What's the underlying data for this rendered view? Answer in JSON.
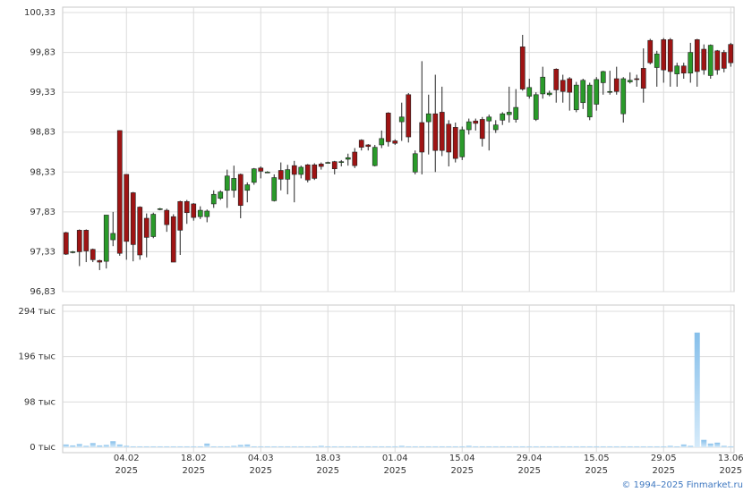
{
  "chart_data": {
    "type": "candlestick",
    "categories": [
      null,
      null,
      null,
      null,
      null,
      null,
      null,
      null,
      null,
      "04.02\n2025",
      null,
      null,
      null,
      null,
      null,
      null,
      null,
      null,
      null,
      "18.02\n2025",
      null,
      null,
      null,
      null,
      null,
      null,
      null,
      null,
      null,
      "04.03\n2025",
      null,
      null,
      null,
      null,
      null,
      null,
      null,
      null,
      null,
      "18.03\n2025",
      null,
      null,
      null,
      null,
      null,
      null,
      null,
      null,
      null,
      "01.04\n2025",
      null,
      null,
      null,
      null,
      null,
      null,
      null,
      null,
      null,
      "15.04\n2025",
      null,
      null,
      null,
      null,
      null,
      null,
      null,
      null,
      null,
      "29.04\n2025",
      null,
      null,
      null,
      null,
      null,
      null,
      null,
      null,
      null,
      "15.05\n2025",
      null,
      null,
      null,
      null,
      null,
      null,
      null,
      null,
      null,
      "29.05\n2025",
      null,
      null,
      null,
      null,
      null,
      null,
      null,
      null,
      null,
      "13.06\n2025"
    ],
    "open": [
      97.57,
      97.33,
      97.6,
      97.6,
      97.36,
      97.22,
      97.21,
      97.48,
      98.85,
      98.3,
      98.07,
      97.89,
      97.75,
      97.52,
      97.86,
      97.85,
      97.77,
      97.96,
      97.96,
      97.93,
      97.77,
      97.77,
      97.93,
      98.0,
      98.1,
      98.1,
      98.3,
      98.1,
      98.2,
      98.38,
      98.33,
      97.97,
      98.35,
      98.24,
      98.41,
      98.3,
      98.42,
      98.42,
      98.43,
      98.45,
      98.46,
      98.46,
      98.49,
      98.58,
      98.73,
      98.67,
      98.41,
      98.67,
      99.07,
      98.72,
      98.96,
      99.3,
      98.33,
      98.95,
      98.96,
      99.06,
      99.08,
      98.93,
      98.89,
      98.52,
      98.86,
      98.97,
      98.99,
      98.97,
      98.86,
      98.98,
      99.05,
      98.99,
      99.9,
      99.28,
      98.99,
      99.31,
      99.3,
      99.62,
      99.48,
      99.5,
      99.11,
      99.2,
      99.02,
      99.18,
      99.45,
      99.34,
      99.5,
      99.06,
      99.46,
      99.5,
      99.63,
      99.98,
      99.64,
      99.99,
      99.99,
      99.56,
      99.66,
      99.57,
      99.99,
      99.87,
      99.54,
      99.85,
      99.83,
      99.93
    ],
    "high": [
      97.58,
      97.34,
      97.61,
      97.61,
      97.37,
      97.23,
      97.79,
      97.83,
      98.85,
      98.3,
      98.08,
      97.9,
      97.81,
      97.82,
      97.88,
      97.87,
      97.8,
      97.97,
      97.98,
      97.94,
      97.9,
      97.86,
      98.1,
      98.1,
      98.36,
      98.41,
      98.31,
      98.2,
      98.38,
      98.4,
      98.34,
      98.3,
      98.45,
      98.42,
      98.47,
      98.41,
      98.43,
      98.44,
      98.45,
      98.46,
      98.47,
      98.48,
      98.56,
      98.63,
      98.74,
      98.68,
      98.67,
      98.85,
      99.08,
      98.74,
      99.2,
      99.32,
      98.6,
      99.72,
      99.3,
      99.55,
      99.4,
      98.98,
      98.95,
      98.9,
      99.0,
      99.0,
      99.02,
      99.05,
      98.98,
      99.08,
      99.4,
      99.37,
      100.05,
      99.5,
      99.33,
      99.65,
      99.35,
      99.63,
      99.55,
      99.52,
      99.46,
      99.5,
      99.45,
      99.52,
      99.6,
      99.6,
      99.65,
      99.52,
      99.58,
      99.55,
      99.88,
      100.0,
      99.85,
      100.01,
      100.01,
      99.7,
      99.7,
      99.95,
      100.0,
      99.93,
      99.93,
      99.86,
      99.86,
      99.95
    ],
    "low": [
      97.29,
      97.31,
      97.15,
      97.2,
      97.2,
      97.1,
      97.12,
      97.4,
      97.28,
      97.23,
      97.21,
      97.23,
      97.26,
      97.5,
      97.85,
      97.58,
      97.2,
      97.29,
      97.68,
      97.72,
      97.74,
      97.7,
      97.88,
      97.98,
      97.88,
      98.01,
      97.75,
      97.95,
      98.17,
      98.25,
      98.32,
      97.96,
      98.1,
      98.05,
      97.95,
      98.25,
      98.2,
      98.23,
      98.36,
      98.44,
      98.3,
      98.4,
      98.41,
      98.38,
      98.6,
      98.6,
      98.4,
      98.63,
      98.65,
      98.67,
      98.72,
      98.7,
      98.3,
      98.3,
      98.55,
      98.33,
      98.53,
      98.4,
      98.45,
      98.48,
      98.8,
      98.85,
      98.65,
      98.6,
      98.82,
      98.92,
      98.95,
      98.95,
      99.35,
      99.25,
      98.97,
      99.25,
      99.28,
      99.2,
      99.2,
      99.1,
      99.08,
      99.12,
      98.98,
      99.1,
      99.3,
      99.3,
      99.3,
      98.95,
      99.44,
      99.4,
      99.2,
      99.68,
      99.4,
      99.45,
      99.4,
      99.4,
      99.5,
      99.45,
      99.4,
      99.55,
      99.5,
      99.55,
      99.58,
      99.65
    ],
    "close": [
      97.3,
      97.33,
      97.33,
      97.34,
      97.23,
      97.2,
      97.79,
      97.56,
      97.31,
      97.46,
      97.42,
      97.29,
      97.51,
      97.8,
      97.87,
      97.67,
      97.2,
      97.6,
      97.82,
      97.76,
      97.85,
      97.84,
      98.05,
      98.08,
      98.28,
      98.25,
      97.91,
      98.17,
      98.37,
      98.34,
      98.33,
      98.26,
      98.24,
      98.36,
      98.3,
      98.39,
      98.23,
      98.25,
      98.4,
      98.45,
      98.37,
      98.46,
      98.51,
      98.41,
      98.64,
      98.65,
      98.64,
      98.75,
      98.71,
      98.69,
      99.02,
      98.77,
      98.56,
      98.58,
      99.06,
      98.6,
      98.6,
      98.58,
      98.5,
      98.86,
      98.96,
      98.94,
      98.75,
      99.02,
      98.92,
      99.06,
      99.08,
      99.14,
      99.37,
      99.39,
      99.3,
      99.52,
      99.32,
      99.36,
      99.34,
      99.33,
      99.42,
      99.48,
      99.42,
      99.49,
      99.59,
      99.34,
      99.34,
      99.5,
      99.48,
      99.49,
      99.38,
      99.7,
      99.81,
      99.61,
      99.59,
      99.66,
      99.57,
      99.83,
      99.59,
      99.61,
      99.92,
      99.61,
      99.63,
      99.7
    ],
    "up_color": "#2a9a2a",
    "down_color": "#9e1414",
    "ylim": [
      96.83,
      100.33
    ],
    "yticks": [
      {
        "value": 96.83,
        "label": "96,83"
      },
      {
        "value": 97.33,
        "label": "97,33"
      },
      {
        "value": 97.83,
        "label": "97,83"
      },
      {
        "value": 98.33,
        "label": "98,33"
      },
      {
        "value": 98.83,
        "label": "98,83"
      },
      {
        "value": 99.33,
        "label": "99,33"
      },
      {
        "value": 99.83,
        "label": "99,83"
      },
      {
        "value": 100.33,
        "label": "100,33"
      }
    ],
    "grid": true,
    "volume": {
      "values": [
        6,
        4,
        7,
        3,
        9,
        4,
        5,
        13,
        6,
        3,
        2,
        2,
        2,
        2,
        2,
        2,
        2,
        2,
        2,
        2,
        2,
        8,
        2,
        2,
        2,
        3,
        5,
        6,
        2,
        2,
        2,
        2,
        2,
        2,
        2,
        2,
        2,
        2,
        3,
        2,
        2,
        2,
        2,
        2,
        2,
        2,
        2,
        2,
        2,
        2,
        3,
        2,
        2,
        2,
        2,
        2,
        2,
        2,
        2,
        2,
        3,
        2,
        2,
        2,
        2,
        2,
        2,
        2,
        2,
        2,
        2,
        2,
        2,
        2,
        2,
        2,
        2,
        2,
        2,
        2,
        2,
        2,
        2,
        2,
        2,
        2,
        2,
        2,
        2,
        2,
        3,
        2,
        6,
        3,
        248,
        16,
        8,
        10,
        3,
        2
      ],
      "color": "#86bfea",
      "ylim": [
        0,
        294
      ],
      "yticks": [
        {
          "value": 0,
          "label": "0 тыс"
        },
        {
          "value": 98,
          "label": "98 тыс"
        },
        {
          "value": 196,
          "label": "196 тыс"
        },
        {
          "value": 294,
          "label": "294 тыс"
        }
      ]
    }
  },
  "footer": "© 1994–2025 Finmarket.ru"
}
